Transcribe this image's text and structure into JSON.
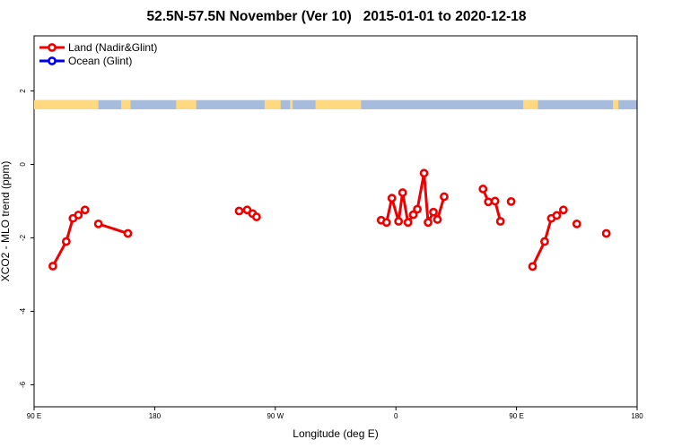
{
  "title": "52.5N-57.5N November (Ver 10)   2015-01-01 to 2020-12-18",
  "colors": {
    "land": "#ee0000",
    "ocean": "#0000ee",
    "strip_land": "#ffd980",
    "strip_ocean": "#a7bcdc"
  },
  "chart_data": {
    "type": "line",
    "xlabel": "Longitude (deg E)",
    "ylabel": "XCO2 - MLO trend (ppm)",
    "xlim": [
      90,
      540
    ],
    "ylim": [
      -6.6,
      3.5
    ],
    "x_ticks": [
      {
        "value": 90,
        "label": "90 E"
      },
      {
        "value": 180,
        "label": "180"
      },
      {
        "value": 270,
        "label": "90 W"
      },
      {
        "value": 360,
        "label": "0"
      },
      {
        "value": 450,
        "label": "90 E"
      },
      {
        "value": 540,
        "label": "180"
      }
    ],
    "y_ticks": [
      {
        "value": 2,
        "label": "2"
      },
      {
        "value": 0,
        "label": "0"
      },
      {
        "value": -2,
        "label": "-2"
      },
      {
        "value": -4,
        "label": "-4"
      },
      {
        "value": -6,
        "label": "-6"
      }
    ],
    "legend": [
      {
        "name": "Land (Nadir&Glint)",
        "color": "#ee0000"
      },
      {
        "name": "Ocean (Glint)",
        "color": "#0000ee"
      }
    ],
    "legend_position": "top-left",
    "land_ocean_strip": {
      "y_range": [
        1.5,
        1.75
      ],
      "land_spans": [
        [
          90,
          138
        ],
        [
          155,
          162
        ],
        [
          196,
          211
        ],
        [
          262,
          274
        ],
        [
          281,
          283
        ],
        [
          300,
          334
        ],
        [
          455,
          466
        ],
        [
          522,
          526
        ]
      ]
    },
    "series": [
      {
        "name": "Land (Nadir&Glint)",
        "segments": [
          [
            {
              "x": 104,
              "y": -2.77
            },
            {
              "x": 114,
              "y": -2.1
            },
            {
              "x": 119,
              "y": -1.47
            },
            {
              "x": 123,
              "y": -1.38
            },
            {
              "x": 128,
              "y": -1.24
            }
          ],
          [
            {
              "x": 138,
              "y": -1.62
            },
            {
              "x": 160,
              "y": -1.88
            }
          ],
          [
            {
              "x": 243,
              "y": -1.27
            },
            {
              "x": 249,
              "y": -1.24
            },
            {
              "x": 253,
              "y": -1.34
            },
            {
              "x": 256,
              "y": -1.43
            }
          ],
          [
            {
              "x": 349,
              "y": -1.52
            },
            {
              "x": 353,
              "y": -1.58
            },
            {
              "x": 357,
              "y": -0.92
            },
            {
              "x": 362,
              "y": -1.55
            },
            {
              "x": 365,
              "y": -0.77
            },
            {
              "x": 369,
              "y": -1.58
            },
            {
              "x": 373,
              "y": -1.37
            },
            {
              "x": 376,
              "y": -1.22
            },
            {
              "x": 381,
              "y": -0.24
            },
            {
              "x": 384,
              "y": -1.58
            },
            {
              "x": 388,
              "y": -1.3
            },
            {
              "x": 391,
              "y": -1.5
            },
            {
              "x": 396,
              "y": -0.88
            }
          ],
          [
            {
              "x": 425,
              "y": -0.67
            },
            {
              "x": 429,
              "y": -1.02
            },
            {
              "x": 434,
              "y": -1.0
            },
            {
              "x": 438,
              "y": -1.55
            }
          ],
          [
            {
              "x": 446,
              "y": -1.01
            }
          ],
          [
            {
              "x": 462,
              "y": -2.78
            },
            {
              "x": 471,
              "y": -2.1
            },
            {
              "x": 476,
              "y": -1.47
            },
            {
              "x": 480,
              "y": -1.39
            },
            {
              "x": 485,
              "y": -1.24
            }
          ],
          [
            {
              "x": 495,
              "y": -1.62
            }
          ],
          [
            {
              "x": 517,
              "y": -1.88
            }
          ]
        ]
      },
      {
        "name": "Ocean (Glint)",
        "segments": []
      }
    ]
  }
}
